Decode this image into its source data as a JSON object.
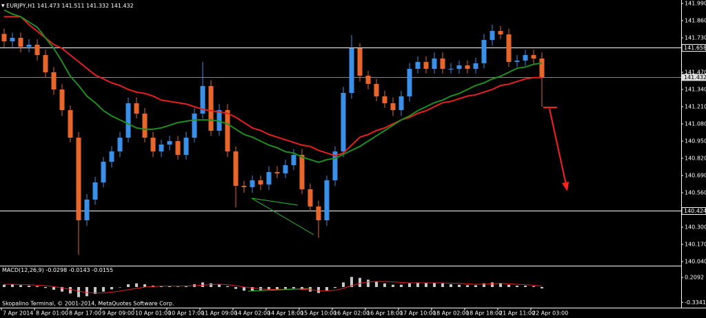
{
  "chart_data": {
    "type": "candlestick",
    "title": "EURJPY,H1",
    "ohlc_readout": [
      141.473,
      141.511,
      141.332,
      141.432
    ],
    "categories": [
      "7 Apr 2014",
      null,
      null,
      null,
      "8 Apr 01:00",
      null,
      null,
      null,
      "8 Apr 17:00",
      null,
      null,
      null,
      "9 Apr 09:00",
      null,
      null,
      null,
      "10 Apr 01:00",
      null,
      null,
      null,
      "10 Apr 17:00",
      null,
      null,
      null,
      "11 Apr 09:00",
      null,
      null,
      null,
      "14 Apr 02:00",
      null,
      null,
      null,
      "14 Apr 18:00",
      null,
      null,
      null,
      "15 Apr 10:00",
      null,
      null,
      null,
      "16 Apr 02:00",
      null,
      null,
      null,
      "16 Apr 18:00",
      null,
      null,
      null,
      "17 Apr 10:00",
      null,
      null,
      null,
      "18 Apr 02:00",
      null,
      null,
      null,
      "18 Apr 18:00",
      null,
      null,
      null,
      "21 Apr 11:00",
      null,
      null,
      null,
      "22 Apr 03:00",
      null
    ],
    "open": [
      141.76,
      141.704,
      141.73,
      141.662,
      141.678,
      141.6,
      141.47,
      141.34,
      141.184,
      140.976,
      140.352,
      140.508,
      140.638,
      140.794,
      140.872,
      140.976,
      141.236,
      141.158,
      140.976,
      140.872,
      140.924,
      140.95,
      140.846,
      140.976,
      141.158,
      141.366,
      141.028,
      141.184,
      140.872,
      140.612,
      140.602,
      140.654,
      140.622,
      140.716,
      140.706,
      140.768,
      140.846,
      140.586,
      140.456,
      140.352,
      140.654,
      140.872,
      141.314,
      141.652,
      141.444,
      141.382,
      141.288,
      141.236,
      141.184,
      141.288,
      141.496,
      141.548,
      141.496,
      141.574,
      141.496,
      141.496,
      141.522,
      141.496,
      141.538,
      141.714,
      141.782,
      141.756,
      141.548,
      141.558,
      141.6,
      141.574
    ],
    "high": [
      141.8,
      141.77,
      141.77,
      141.72,
      141.72,
      141.64,
      141.51,
      141.38,
      141.22,
      141.02,
      140.55,
      140.68,
      140.83,
      140.91,
      141.02,
      141.28,
      141.28,
      141.2,
      141.02,
      140.96,
      140.99,
      140.99,
      141.02,
      141.2,
      141.55,
      141.41,
      141.23,
      141.23,
      140.91,
      140.65,
      140.69,
      140.69,
      140.76,
      140.76,
      140.81,
      140.89,
      140.89,
      140.63,
      140.5,
      140.69,
      140.91,
      141.36,
      141.75,
      141.69,
      141.48,
      141.42,
      141.33,
      141.28,
      141.33,
      141.54,
      141.59,
      141.59,
      141.62,
      141.62,
      141.54,
      141.56,
      141.56,
      141.58,
      141.76,
      141.83,
      141.82,
      141.8,
      141.6,
      141.64,
      141.64,
      141.62
    ],
    "low": [
      141.66,
      141.66,
      141.62,
      141.62,
      141.56,
      141.43,
      141.3,
      141.14,
      140.94,
      140.09,
      140.31,
      140.47,
      140.6,
      140.75,
      140.83,
      140.94,
      141.12,
      140.94,
      140.83,
      140.83,
      140.88,
      140.81,
      140.81,
      140.94,
      141.12,
      140.99,
      140.99,
      140.83,
      140.45,
      140.56,
      140.56,
      140.58,
      140.58,
      140.67,
      140.67,
      140.73,
      140.55,
      140.42,
      140.22,
      140.31,
      140.61,
      140.83,
      141.27,
      141.4,
      141.34,
      141.25,
      141.2,
      141.14,
      141.14,
      141.25,
      141.46,
      141.46,
      141.46,
      141.46,
      141.46,
      141.46,
      141.46,
      141.46,
      141.5,
      141.67,
      141.72,
      141.51,
      141.51,
      141.52,
      141.53,
      141.21
    ],
    "close": [
      141.704,
      141.73,
      141.662,
      141.678,
      141.6,
      141.47,
      141.34,
      141.184,
      140.976,
      140.352,
      140.508,
      140.638,
      140.794,
      140.872,
      140.976,
      141.236,
      141.158,
      140.976,
      140.872,
      140.924,
      140.95,
      140.846,
      140.976,
      141.158,
      141.366,
      141.028,
      141.184,
      140.872,
      140.612,
      140.602,
      140.654,
      140.622,
      140.716,
      140.706,
      140.768,
      140.846,
      140.586,
      140.456,
      140.352,
      140.654,
      140.872,
      141.314,
      141.652,
      141.444,
      141.382,
      141.288,
      141.236,
      141.184,
      141.288,
      141.496,
      141.548,
      141.496,
      141.574,
      141.496,
      141.496,
      141.522,
      141.496,
      141.538,
      141.714,
      141.782,
      141.756,
      141.548,
      141.558,
      141.6,
      141.574,
      141.432
    ],
    "up_color": "#3a8fe8",
    "down_color": "#e8662c",
    "ylim": [
      140.014,
      142.016
    ],
    "yticks": [
      {
        "value": 141.99,
        "label": "141.990"
      },
      {
        "value": 141.86,
        "label": "141.860"
      },
      {
        "value": 141.73,
        "label": "141.730"
      },
      {
        "value": 141.47,
        "label": "141.470"
      },
      {
        "value": 141.34,
        "label": "141.340"
      },
      {
        "value": 141.21,
        "label": "141.210"
      },
      {
        "value": 141.08,
        "label": "141.080"
      },
      {
        "value": 140.95,
        "label": "140.950"
      },
      {
        "value": 140.82,
        "label": "140.820"
      },
      {
        "value": 140.69,
        "label": "140.690"
      },
      {
        "value": 140.56,
        "label": "140.560"
      },
      {
        "value": 140.3,
        "label": "140.300"
      },
      {
        "value": 140.17,
        "label": "140.170"
      },
      {
        "value": 140.04,
        "label": "140.040"
      }
    ],
    "levels": [
      141.658,
      140.424
    ],
    "last_price": 141.432,
    "overlays": [
      {
        "color": "#e82020",
        "values": [
          141.89,
          141.89,
          141.89,
          141.83,
          141.78,
          141.73,
          141.68,
          141.65,
          141.6,
          141.55,
          141.5,
          141.45,
          141.42,
          141.39,
          141.37,
          141.34,
          141.32,
          141.31,
          141.29,
          141.26,
          141.25,
          141.24,
          141.23,
          141.21,
          141.19,
          141.18,
          141.17,
          141.16,
          141.13,
          141.09,
          141.05,
          141.03,
          141.0,
          140.98,
          140.96,
          140.94,
          140.92,
          140.91,
          140.88,
          140.86,
          140.84,
          140.86,
          140.92,
          140.98,
          141.0,
          141.03,
          141.05,
          141.08,
          141.11,
          141.13,
          141.16,
          141.18,
          141.21,
          141.24,
          141.25,
          141.27,
          141.29,
          141.3,
          141.32,
          141.34,
          141.37,
          141.38,
          141.4,
          141.42,
          141.43,
          141.43
        ]
      },
      {
        "color": "#1f8f1f",
        "values": [
          141.94,
          141.91,
          141.89,
          141.85,
          141.81,
          141.73,
          141.65,
          141.55,
          141.44,
          141.37,
          141.29,
          141.24,
          141.18,
          141.14,
          141.11,
          141.08,
          141.05,
          141.04,
          141.04,
          141.05,
          141.07,
          141.09,
          141.1,
          141.11,
          141.11,
          141.11,
          141.1,
          141.08,
          141.04,
          141.0,
          140.98,
          140.95,
          140.92,
          140.9,
          140.87,
          140.86,
          140.83,
          140.81,
          140.79,
          140.81,
          140.82,
          140.85,
          140.88,
          140.91,
          140.95,
          140.99,
          141.03,
          141.07,
          141.11,
          141.14,
          141.18,
          141.21,
          141.24,
          141.26,
          141.29,
          141.31,
          141.34,
          141.37,
          141.39,
          141.42,
          141.44,
          141.47,
          141.5,
          141.51,
          141.53,
          141.54
        ]
      }
    ],
    "macd": {
      "title": "MACD(12,26,9)",
      "readout": [
        -0.0298,
        -0.0143,
        -0.0155
      ],
      "histogram": [
        0.05,
        0.06,
        0.04,
        0.03,
        0.02,
        -0.02,
        -0.06,
        -0.1,
        -0.14,
        -0.22,
        -0.2,
        -0.15,
        -0.1,
        -0.05,
        0.0,
        0.06,
        0.08,
        0.06,
        0.03,
        0.02,
        0.02,
        0.01,
        0.03,
        0.06,
        0.1,
        0.08,
        0.06,
        0.02,
        -0.04,
        -0.08,
        -0.08,
        -0.07,
        -0.06,
        -0.05,
        -0.04,
        -0.03,
        -0.06,
        -0.1,
        -0.13,
        -0.08,
        -0.02,
        0.1,
        0.22,
        0.2,
        0.16,
        0.12,
        0.08,
        0.05,
        0.05,
        0.08,
        0.1,
        0.09,
        0.09,
        0.08,
        0.06,
        0.05,
        0.04,
        0.04,
        0.08,
        0.1,
        0.09,
        0.05,
        0.03,
        0.03,
        0.02,
        -0.03
      ],
      "histogram_color": "#c8c8c8",
      "signal": [
        0.06,
        0.06,
        0.05,
        0.05,
        0.04,
        0.03,
        0.01,
        -0.02,
        -0.05,
        -0.09,
        -0.12,
        -0.13,
        -0.13,
        -0.11,
        -0.09,
        -0.06,
        -0.03,
        0.0,
        0.01,
        0.02,
        0.02,
        0.02,
        0.02,
        0.03,
        0.04,
        0.05,
        0.06,
        0.05,
        0.03,
        0.0,
        -0.02,
        -0.04,
        -0.05,
        -0.05,
        -0.05,
        -0.04,
        -0.05,
        -0.06,
        -0.08,
        -0.08,
        -0.07,
        -0.03,
        0.03,
        0.08,
        0.11,
        0.12,
        0.12,
        0.11,
        0.1,
        0.09,
        0.09,
        0.09,
        0.09,
        0.09,
        0.08,
        0.08,
        0.07,
        0.06,
        0.06,
        0.07,
        0.08,
        0.07,
        0.06,
        0.05,
        0.04,
        0.02
      ],
      "signal_color": "#e82020",
      "ylim": [
        -0.45,
        0.45
      ],
      "yticks": [
        0.2092,
        -0.3341
      ]
    },
    "footer": "Skopalino Terminal, © 2001-2014, MetaQuotes Software Corp."
  }
}
